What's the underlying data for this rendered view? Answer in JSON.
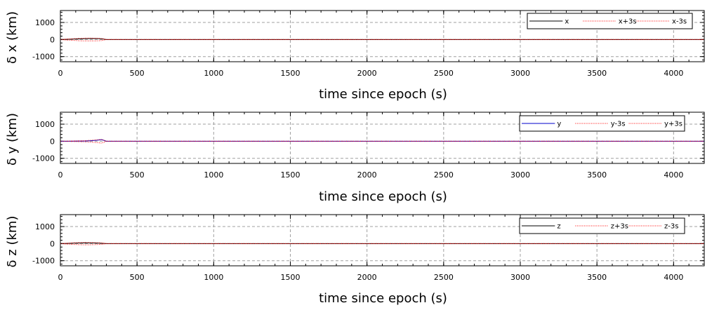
{
  "chart_data": [
    {
      "type": "line",
      "ylabel": "δ x (km)",
      "xlabel": "time since epoch (s)",
      "xlim": [
        0,
        4200
      ],
      "ylim": [
        -1300,
        1700
      ],
      "xticks": [
        0,
        500,
        1000,
        1500,
        2000,
        2500,
        3000,
        3500,
        4000
      ],
      "yticks": [
        -1000,
        0,
        1000
      ],
      "grid": true,
      "legend_position": "top-right",
      "series": [
        {
          "name": "x",
          "color": "#000000",
          "style": "solid",
          "x": [
            0,
            40,
            80,
            120,
            160,
            200,
            240,
            270,
            300,
            1000,
            2000,
            3000,
            4200
          ],
          "y": [
            0,
            10,
            25,
            35,
            50,
            60,
            55,
            40,
            0,
            0,
            0,
            0,
            0
          ]
        },
        {
          "name": "x+3s",
          "color": "#ff0000",
          "style": "dotted",
          "x": [
            0,
            40,
            80,
            120,
            160,
            200,
            240,
            270,
            300,
            1000,
            2000,
            3000,
            4200
          ],
          "y": [
            0,
            30,
            45,
            70,
            80,
            80,
            75,
            60,
            0,
            0,
            0,
            0,
            0
          ]
        },
        {
          "name": "x-3s",
          "color": "#ff0000",
          "style": "dotted",
          "x": [
            0,
            40,
            80,
            120,
            160,
            200,
            240,
            270,
            300,
            1000,
            2000,
            3000,
            4200
          ],
          "y": [
            0,
            -30,
            -45,
            -70,
            -80,
            -80,
            -75,
            -60,
            0,
            0,
            0,
            0,
            0
          ]
        }
      ]
    },
    {
      "type": "line",
      "ylabel": "δ y (km)",
      "xlabel": "time since epoch (s)",
      "xlim": [
        0,
        4200
      ],
      "ylim": [
        -1300,
        1700
      ],
      "xticks": [
        0,
        500,
        1000,
        1500,
        2000,
        2500,
        3000,
        3500,
        4000
      ],
      "yticks": [
        -1000,
        0,
        1000
      ],
      "grid": true,
      "legend_position": "top-right",
      "series": [
        {
          "name": "y",
          "color": "#0000cc",
          "style": "solid",
          "x": [
            0,
            40,
            80,
            120,
            160,
            200,
            240,
            270,
            300,
            1000,
            2000,
            3000,
            4200
          ],
          "y": [
            0,
            0,
            5,
            10,
            15,
            30,
            60,
            90,
            0,
            0,
            0,
            0,
            0
          ]
        },
        {
          "name": "y-3s",
          "color": "#ff0000",
          "style": "dotted",
          "x": [
            0,
            40,
            80,
            120,
            160,
            200,
            240,
            270,
            300,
            1000,
            2000,
            3000,
            4200
          ],
          "y": [
            0,
            -10,
            -15,
            -25,
            -35,
            -55,
            -80,
            -110,
            0,
            0,
            0,
            0,
            0
          ]
        },
        {
          "name": "y+3s",
          "color": "#ff0000",
          "style": "dotted",
          "x": [
            0,
            40,
            80,
            120,
            160,
            200,
            240,
            270,
            300,
            1000,
            2000,
            3000,
            4200
          ],
          "y": [
            0,
            10,
            15,
            25,
            35,
            55,
            80,
            110,
            0,
            0,
            0,
            0,
            0
          ]
        }
      ]
    },
    {
      "type": "line",
      "ylabel": "δ z (km)",
      "xlabel": "time since epoch (s)",
      "xlim": [
        0,
        4200
      ],
      "ylim": [
        -1300,
        1700
      ],
      "xticks": [
        0,
        500,
        1000,
        1500,
        2000,
        2500,
        3000,
        3500,
        4000
      ],
      "yticks": [
        -1000,
        0,
        1000
      ],
      "grid": true,
      "legend_position": "top-right",
      "series": [
        {
          "name": "z",
          "color": "#000000",
          "style": "solid",
          "x": [
            0,
            40,
            80,
            120,
            160,
            200,
            240,
            270,
            300,
            1000,
            2000,
            3000,
            4200
          ],
          "y": [
            0,
            10,
            25,
            35,
            45,
            40,
            30,
            20,
            0,
            0,
            0,
            0,
            0
          ]
        },
        {
          "name": "z+3s",
          "color": "#ff0000",
          "style": "dotted",
          "x": [
            0,
            40,
            80,
            120,
            160,
            200,
            240,
            270,
            300,
            1000,
            2000,
            3000,
            4200
          ],
          "y": [
            0,
            25,
            45,
            60,
            70,
            65,
            55,
            40,
            0,
            0,
            0,
            0,
            0
          ]
        },
        {
          "name": "z-3s",
          "color": "#ff0000",
          "style": "dotted",
          "x": [
            0,
            40,
            80,
            120,
            160,
            200,
            240,
            270,
            300,
            1000,
            2000,
            3000,
            4200
          ],
          "y": [
            0,
            -25,
            -45,
            -60,
            -70,
            -65,
            -55,
            -40,
            0,
            0,
            0,
            0,
            0
          ]
        }
      ]
    }
  ]
}
